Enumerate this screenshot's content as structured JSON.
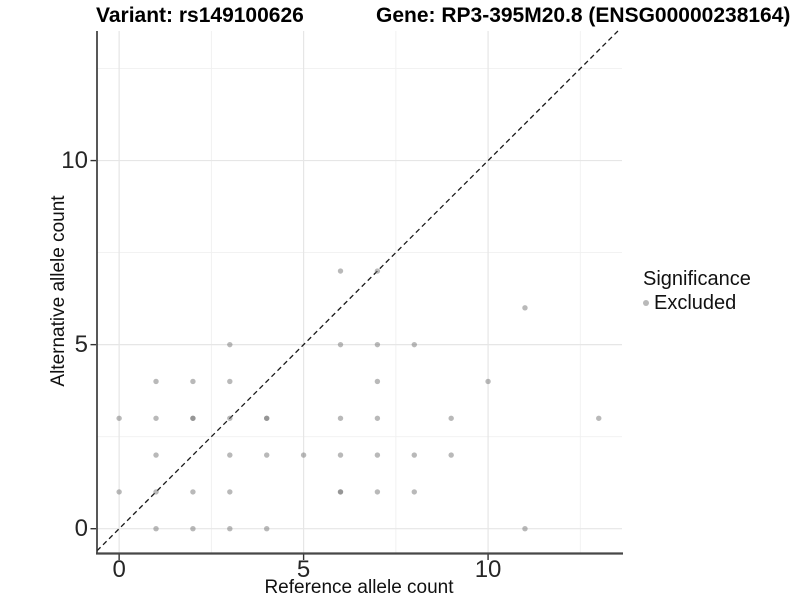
{
  "chart_data": {
    "type": "scatter",
    "title_variant": "Variant: rs149100626",
    "title_gene": "Gene: RP3-395M20.8 (ENSG00000238164)",
    "xlabel": "Reference allele count",
    "ylabel": "Alternative allele count",
    "x_ticks": [
      "0",
      "5",
      "10"
    ],
    "x_tick_values": [
      0,
      5,
      10
    ],
    "y_ticks": [
      "0",
      "5",
      "10"
    ],
    "y_tick_values": [
      0,
      5,
      10
    ],
    "x_minor_gridlines": [
      2.5,
      7.5,
      12.5
    ],
    "y_minor_gridlines": [
      2.5,
      7.5,
      12.5
    ],
    "xlim": [
      -0.6,
      13.63
    ],
    "ylim": [
      -0.66,
      13.52
    ],
    "grid": true,
    "identity_line": {
      "type": "dashed",
      "slope": 1,
      "intercept": 0
    },
    "legend": {
      "title": "Significance",
      "position": "right",
      "entries": [
        {
          "label": "Excluded",
          "color": "#b9b9b9"
        }
      ]
    },
    "series": [
      {
        "name": "Excluded",
        "points": [
          [
            1,
            0,
            1
          ],
          [
            2,
            0,
            1
          ],
          [
            3,
            0,
            1
          ],
          [
            4,
            0,
            1
          ],
          [
            11,
            0,
            1
          ],
          [
            0,
            1,
            1
          ],
          [
            1,
            1,
            1
          ],
          [
            2,
            1,
            1
          ],
          [
            3,
            1,
            1
          ],
          [
            6,
            1,
            2
          ],
          [
            7,
            1,
            1
          ],
          [
            8,
            1,
            1
          ],
          [
            1,
            2,
            1
          ],
          [
            3,
            2,
            1
          ],
          [
            4,
            2,
            1
          ],
          [
            5,
            2,
            1
          ],
          [
            6,
            2,
            1
          ],
          [
            7,
            2,
            1
          ],
          [
            8,
            2,
            1
          ],
          [
            9,
            2,
            1
          ],
          [
            0,
            3,
            1
          ],
          [
            1,
            3,
            1
          ],
          [
            2,
            3,
            2
          ],
          [
            3,
            3,
            1
          ],
          [
            4,
            3,
            2
          ],
          [
            6,
            3,
            1
          ],
          [
            7,
            3,
            1
          ],
          [
            9,
            3,
            1
          ],
          [
            13,
            3,
            1
          ],
          [
            1,
            4,
            1
          ],
          [
            2,
            4,
            1
          ],
          [
            3,
            4,
            1
          ],
          [
            7,
            4,
            1
          ],
          [
            10,
            4,
            1
          ],
          [
            3,
            5,
            1
          ],
          [
            6,
            5,
            1
          ],
          [
            7,
            5,
            1
          ],
          [
            8,
            5,
            1
          ],
          [
            11,
            6,
            1
          ],
          [
            6,
            7,
            1
          ],
          [
            7,
            7,
            1
          ]
        ]
      }
    ]
  },
  "colors": {
    "point": "#737373",
    "point_opacity": 0.5,
    "legend_key": "#b9b9b9",
    "grid_major": "#e6e6e6",
    "grid_minor": "#f0f0f0",
    "axis_left": "#2e2e2e",
    "axis_bottom": "#474747",
    "tick_mark": "#333333",
    "dashed_line": "#1a1a1a",
    "background": "#ffffff"
  }
}
